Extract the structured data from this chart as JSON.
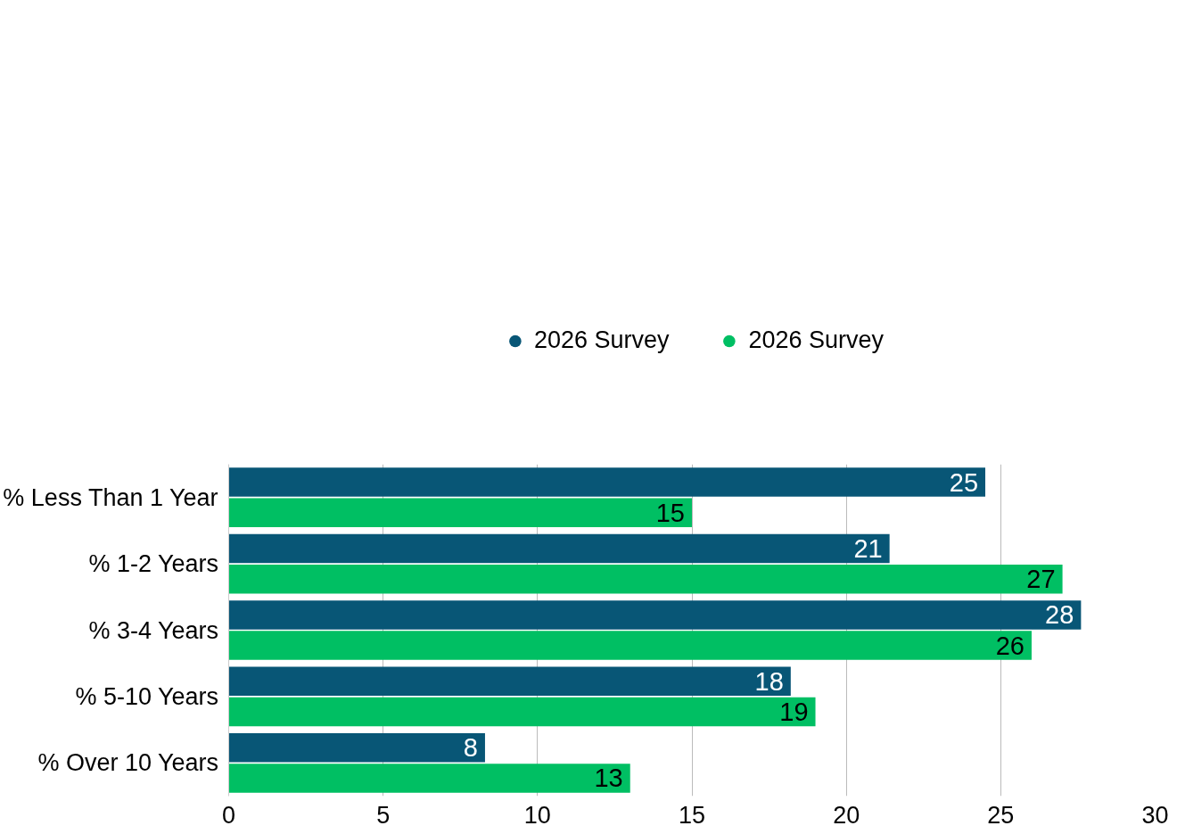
{
  "chart_data": {
    "type": "bar",
    "orientation": "horizontal",
    "categories": [
      "% Less Than 1 Year",
      "% 1-2 Years",
      "% 3-4 Years",
      "% 5-10 Years",
      "% Over 10 Years"
    ],
    "series": [
      {
        "name": "2026 Survey",
        "color": "#085676",
        "values": [
          24.5,
          21.4,
          27.6,
          18.2,
          8.3
        ],
        "value_labels": [
          "25",
          "21",
          "28",
          "18",
          "8"
        ]
      },
      {
        "name": "2026 Survey",
        "color": "#00bf63",
        "values": [
          15,
          27,
          26,
          19,
          13
        ],
        "value_labels": [
          "15",
          "27",
          "26",
          "19",
          "13"
        ]
      }
    ],
    "xlim": [
      0,
      30
    ],
    "xticks": [
      0,
      5,
      10,
      15,
      20,
      25,
      30
    ],
    "grid": "x",
    "legend": "top"
  }
}
